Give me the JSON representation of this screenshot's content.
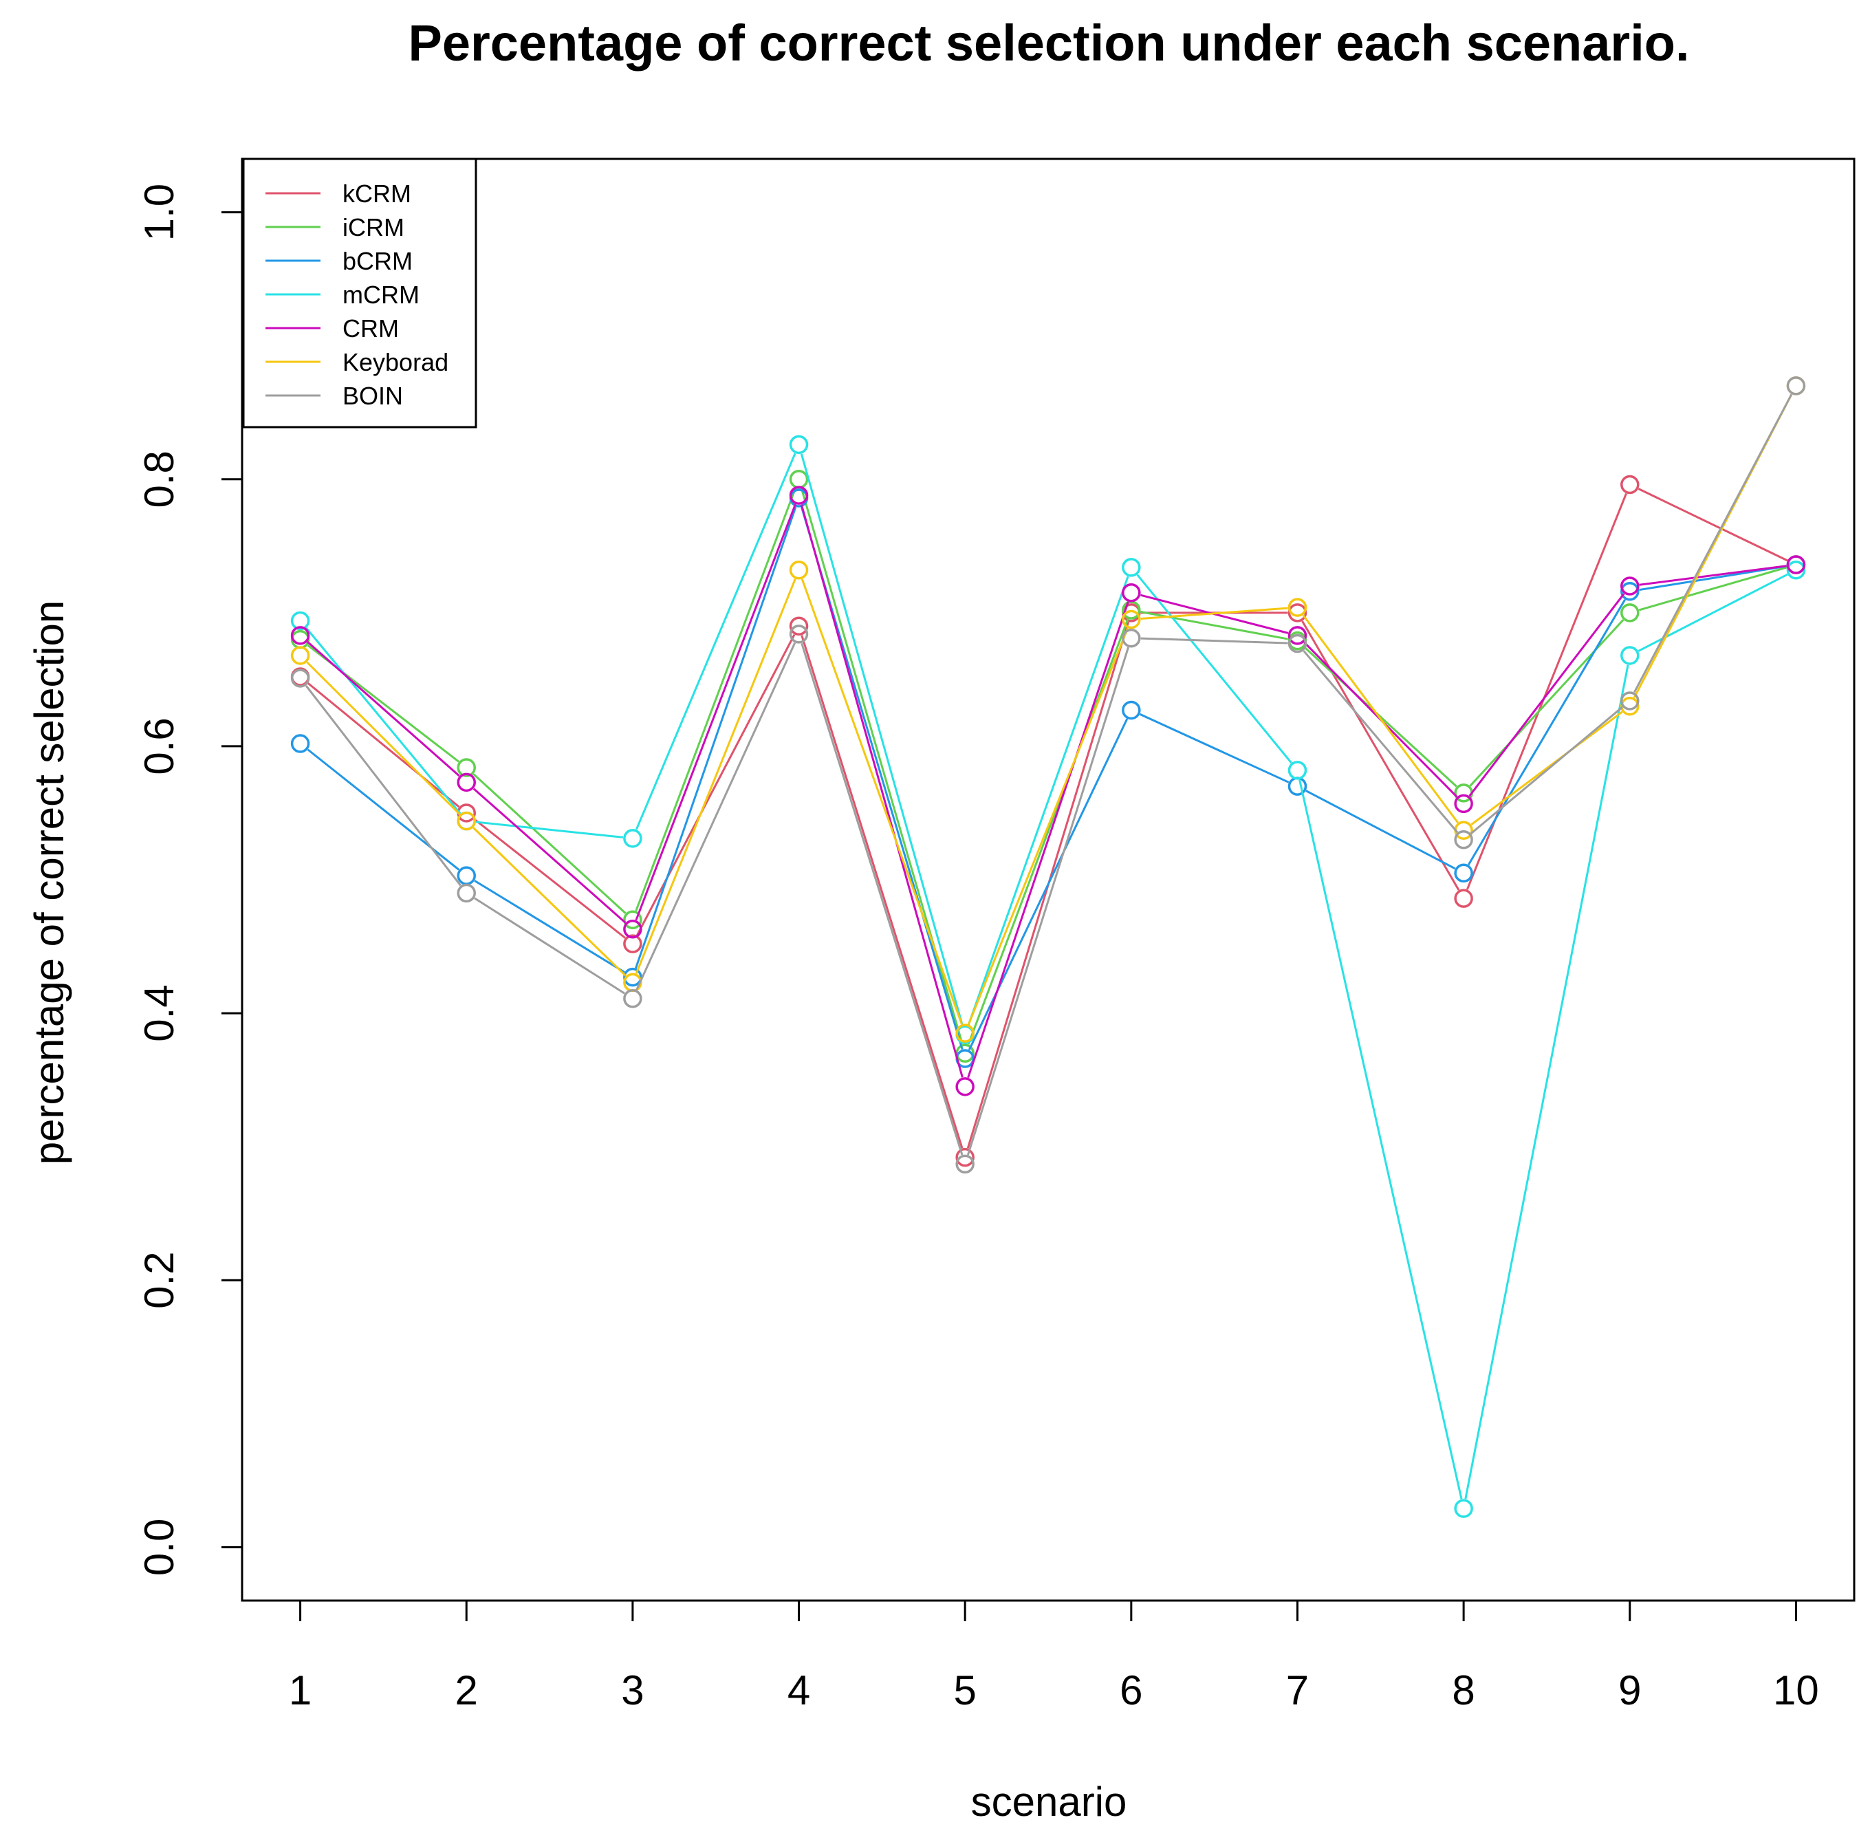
{
  "chart_data": {
    "type": "line",
    "title": "Percentage of correct selection under each scenario.",
    "xlabel": "scenario",
    "ylabel": "percentage of correct selection",
    "x": [
      1,
      2,
      3,
      4,
      5,
      6,
      7,
      8,
      9,
      10
    ],
    "x_ticks": [
      "1",
      "2",
      "3",
      "4",
      "5",
      "6",
      "7",
      "8",
      "9",
      "10"
    ],
    "xlim": [
      0.65,
      10.35
    ],
    "y_ticks": [
      "0.0",
      "0.2",
      "0.4",
      "0.6",
      "0.8",
      "1.0"
    ],
    "ylim": [
      -0.04,
      1.04
    ],
    "grid": false,
    "legend_position": "top-left",
    "markers": "open-circle",
    "series": [
      {
        "name": "kCRM",
        "color": "#DF536B",
        "values": [
          0.652,
          0.55,
          0.452,
          0.69,
          0.292,
          0.7,
          0.7,
          0.486,
          0.796,
          0.736
        ]
      },
      {
        "name": "iCRM",
        "color": "#61D04F",
        "values": [
          0.68,
          0.584,
          0.47,
          0.8,
          0.37,
          0.702,
          0.679,
          0.565,
          0.7,
          0.736
        ]
      },
      {
        "name": "bCRM",
        "color": "#2297E6",
        "values": [
          0.602,
          0.503,
          0.427,
          0.786,
          0.366,
          0.627,
          0.57,
          0.505,
          0.716,
          0.736
        ]
      },
      {
        "name": "mCRM",
        "color": "#28E2E5",
        "values": [
          0.694,
          0.544,
          0.531,
          0.826,
          0.384,
          0.734,
          0.582,
          0.029,
          0.668,
          0.732
        ]
      },
      {
        "name": "CRM",
        "color": "#CD0BBC",
        "values": [
          0.683,
          0.573,
          0.463,
          0.788,
          0.345,
          0.715,
          0.683,
          0.557,
          0.72,
          0.736
        ]
      },
      {
        "name": "Keyborad",
        "color": "#F5C710",
        "values": [
          0.668,
          0.544,
          0.423,
          0.732,
          0.385,
          0.695,
          0.704,
          0.537,
          0.63,
          0.87
        ]
      },
      {
        "name": "BOIN",
        "color": "#9E9E9E",
        "values": [
          0.651,
          0.49,
          0.411,
          0.684,
          0.287,
          0.681,
          0.677,
          0.53,
          0.634,
          0.87
        ]
      }
    ]
  }
}
